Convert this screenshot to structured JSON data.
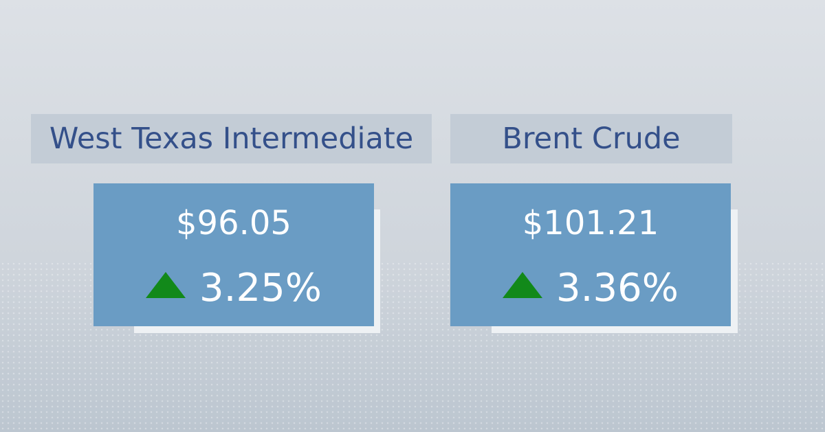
{
  "cards": [
    {
      "label": "West Texas Intermediate",
      "price": "$96.05",
      "change": "3.25%"
    },
    {
      "label": "Brent Crude",
      "price": "$101.21",
      "change": "3.36%"
    }
  ]
}
